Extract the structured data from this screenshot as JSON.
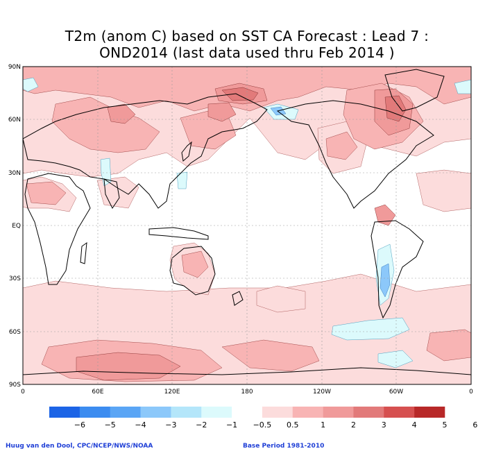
{
  "title_line1": "T2m (anom C) based on SST CA Forecast : Lead 7 :",
  "title_line2": "OND2014 (last data used thru Feb 2014 )",
  "lat_labels": [
    "90N",
    "60N",
    "30N",
    "EQ",
    "30S",
    "60S",
    "90S"
  ],
  "lon_labels": [
    "0",
    "60E",
    "120E",
    "180",
    "120W",
    "60W",
    "0"
  ],
  "colorbar": {
    "colors": [
      "#1c64e6",
      "#3c8cf0",
      "#5aa5f5",
      "#8cc8fa",
      "#b4e6fa",
      "#dcfafc",
      "#ffffff",
      "#fcdcdc",
      "#f8b4b4",
      "#f09a9a",
      "#e27a7a",
      "#d65050",
      "#b82828"
    ],
    "tick_labels": [
      "−6",
      "−5",
      "−4",
      "−3",
      "−2",
      "−1",
      "−0.5",
      "0.5",
      "1",
      "2",
      "3",
      "4",
      "5",
      "6"
    ]
  },
  "footer_credit": "Huug van den Dool, CPC/NCEP/NWS/NOAA",
  "footer_base": "Base Period 1981-2010"
}
